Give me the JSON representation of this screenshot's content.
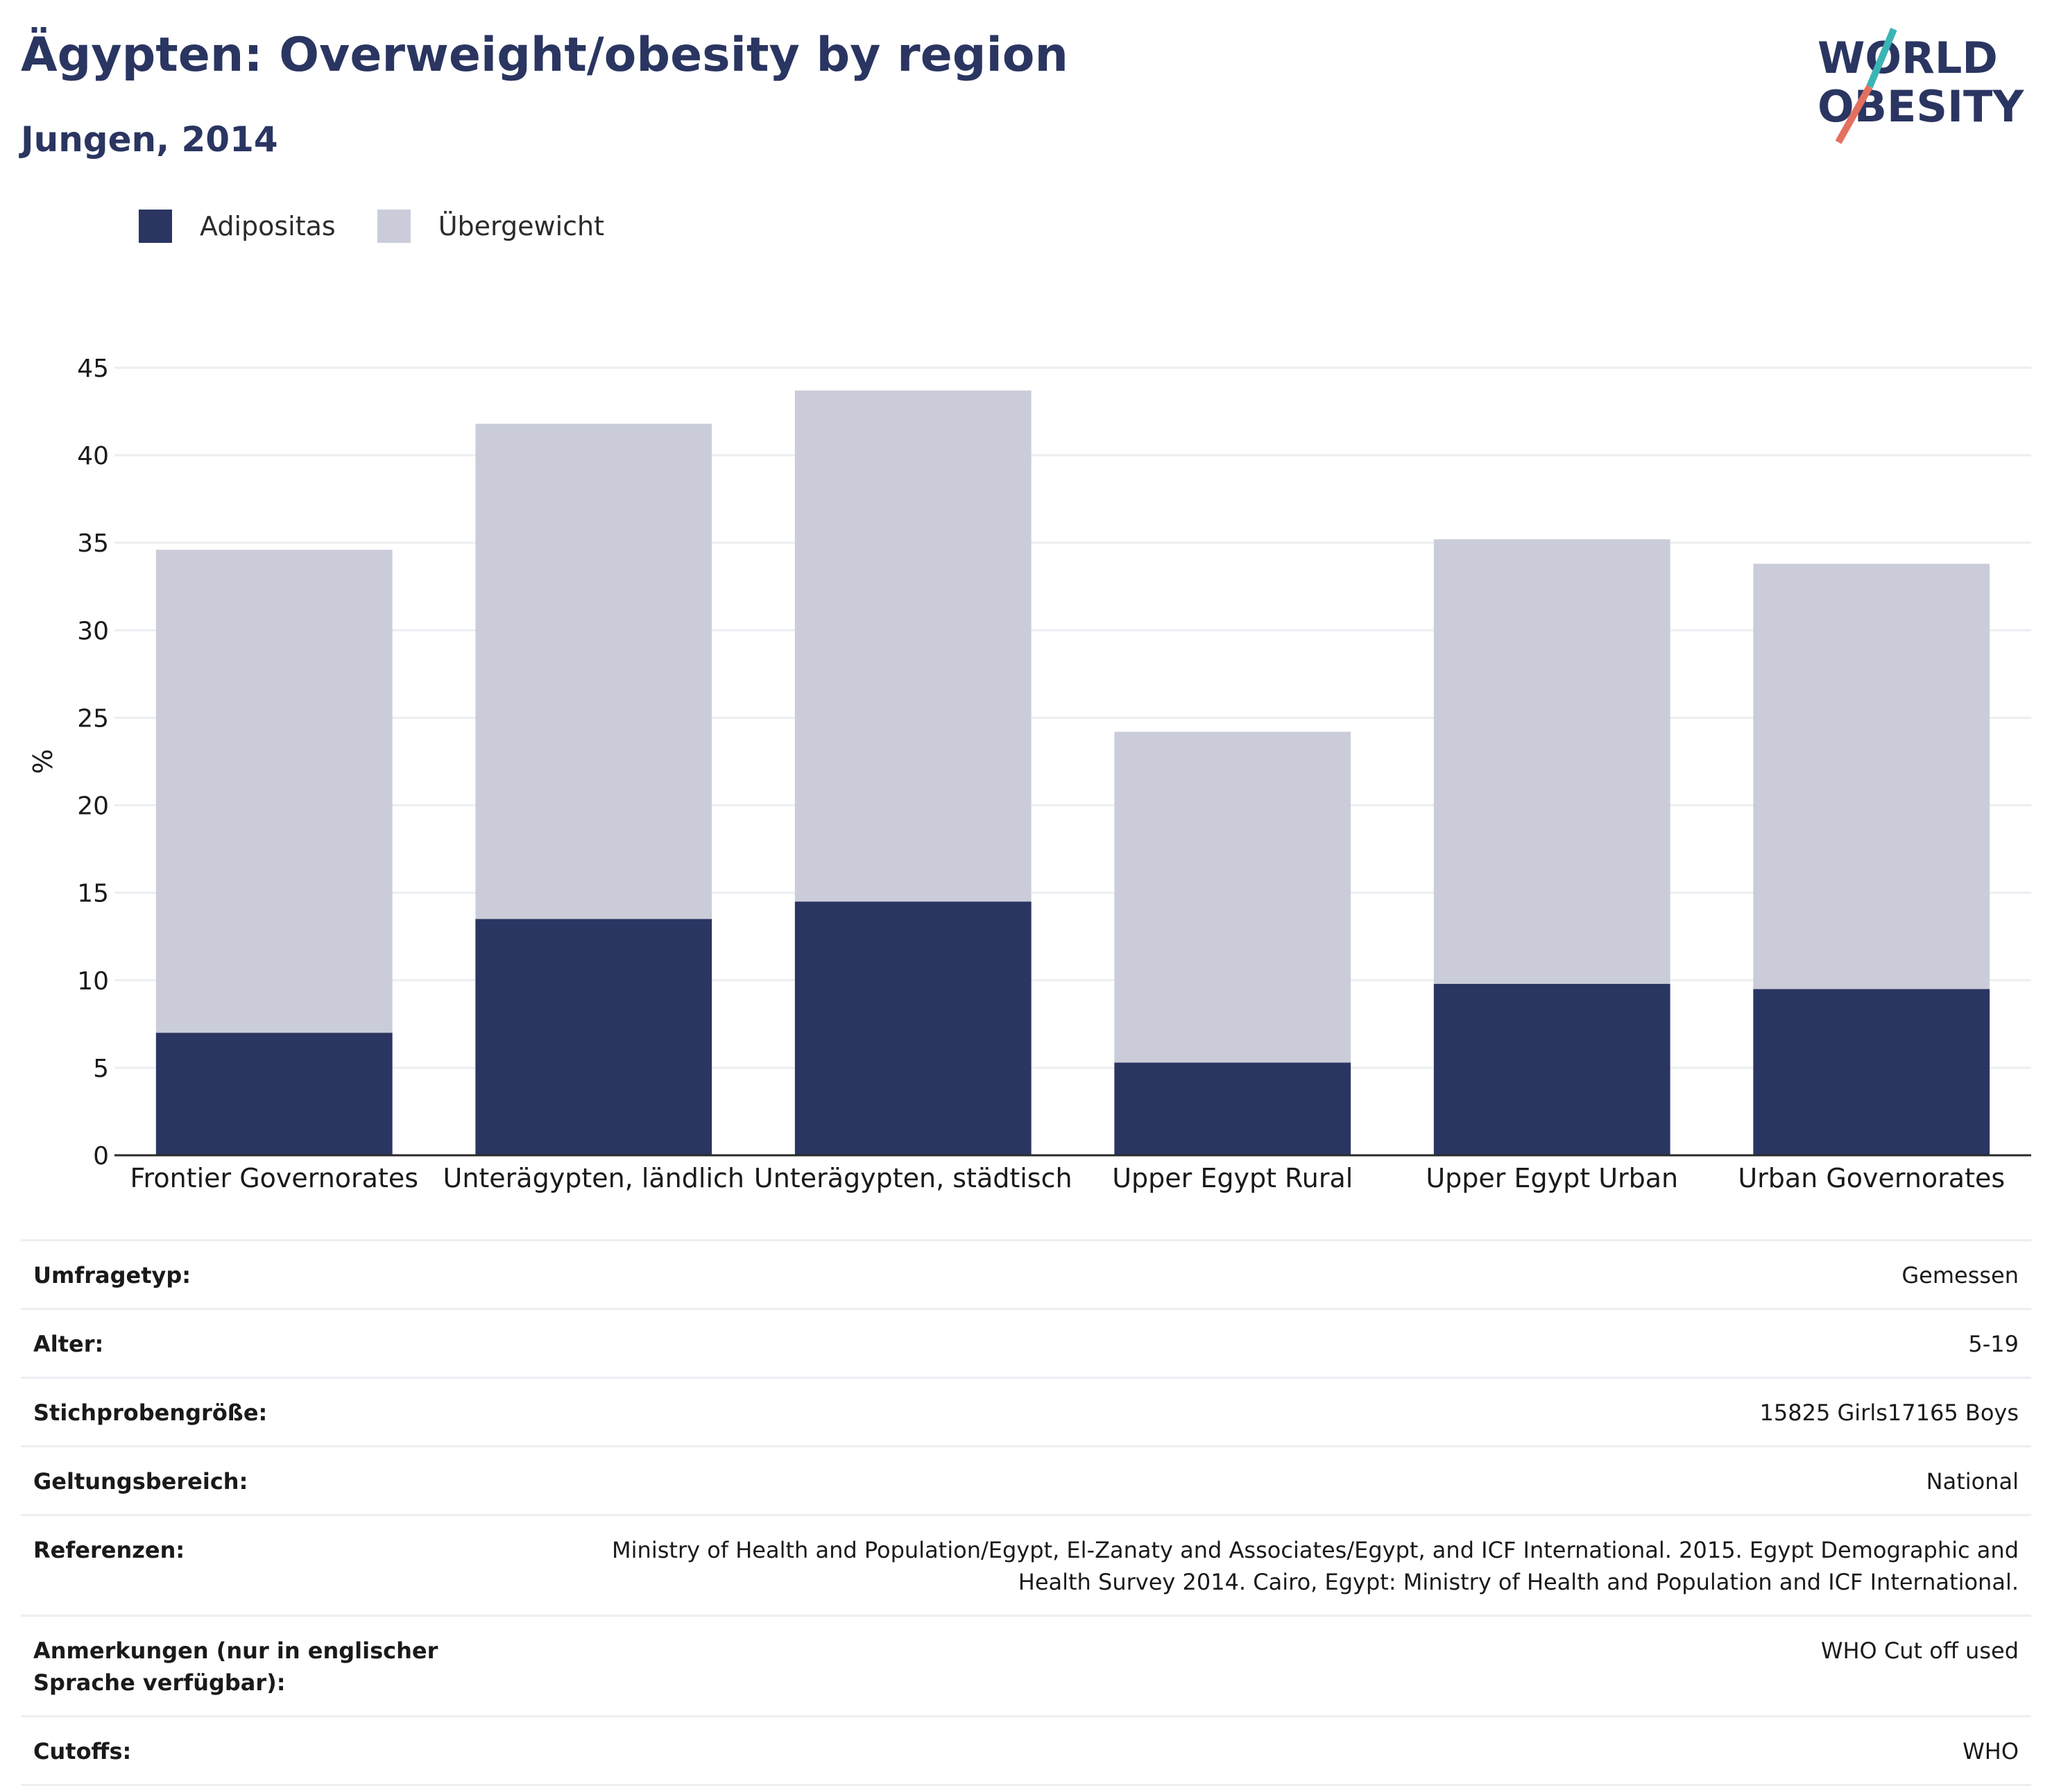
{
  "header": {
    "title": "Ägypten: Overweight/obesity by region",
    "subtitle": "Jungen, 2014"
  },
  "logo": {
    "line1": "WORLD",
    "line2": "OBESITY"
  },
  "colors": {
    "obesity": "#2a3561",
    "overweight": "#cacdd9",
    "accent_teal": "#3bb4b4",
    "accent_coral": "#e4705f"
  },
  "chart_data": {
    "type": "bar",
    "stacked": true,
    "categories": [
      "Frontier Governorates",
      "Unterägypten, ländlich",
      "Unterägypten, städtisch",
      "Upper Egypt Rural",
      "Upper Egypt Urban",
      "Urban Governorates"
    ],
    "series": [
      {
        "name": "Adipositas",
        "values": [
          7.0,
          13.5,
          14.5,
          5.3,
          9.8,
          9.5
        ]
      },
      {
        "name": "Übergewicht",
        "values": [
          27.6,
          28.3,
          29.2,
          18.9,
          25.4,
          24.3
        ]
      }
    ],
    "totals": [
      34.6,
      41.8,
      43.7,
      24.2,
      35.2,
      33.8
    ],
    "ylabel": "%",
    "ylim": [
      0,
      45
    ],
    "yticks": [
      0,
      5,
      10,
      15,
      20,
      25,
      30,
      35,
      40,
      45
    ],
    "grid": true,
    "legend_position": "top-left"
  },
  "info": [
    {
      "label": "Umfragetyp:",
      "value": "Gemessen"
    },
    {
      "label": "Alter:",
      "value": "5-19"
    },
    {
      "label": "Stichprobengröße:",
      "value": "15825 Girls17165 Boys"
    },
    {
      "label": "Geltungsbereich:",
      "value": "National"
    },
    {
      "label": "Referenzen:",
      "value": "Ministry of Health and Population/Egypt, El-Zanaty and Associates/Egypt, and ICF International. 2015. Egypt Demographic and Health Survey 2014. Cairo, Egypt: Ministry of Health and Population and ICF International."
    },
    {
      "label": "Anmerkungen (nur in englischer Sprache verfügbar):",
      "value": "WHO Cut off used"
    },
    {
      "label": "Cutoffs:",
      "value": "WHO"
    }
  ]
}
